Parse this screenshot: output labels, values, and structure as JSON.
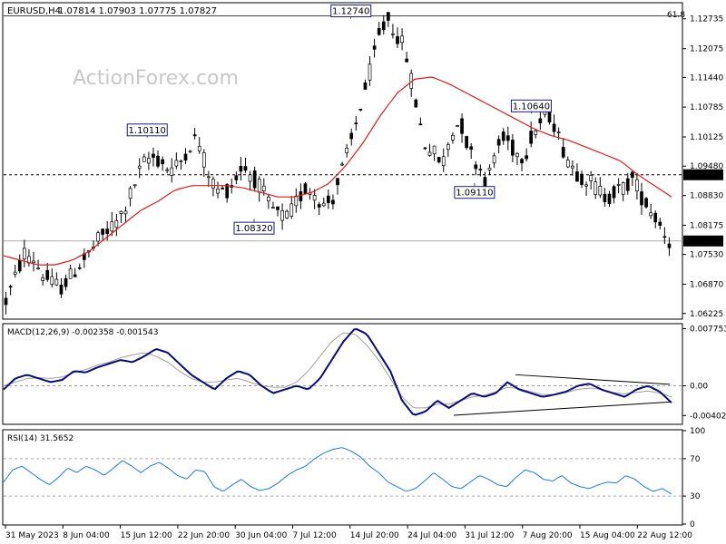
{
  "header": {
    "symbol_label": "EURUSD,H4",
    "ohlc": "1.07814 1.07903 1.07775 1.07827"
  },
  "watermark": "ActionForex.com",
  "fib_label": "61.8",
  "colors": {
    "candle": "#000000",
    "ma": "#e31a1c",
    "macd": "#0a0a78",
    "signal": "#a0a0a0",
    "rsi": "#1e78dc",
    "current_price_bg": "#000000",
    "marked_price_bg": "#000000"
  },
  "chart_data": [
    {
      "type": "candlestick",
      "title": "EURUSD,H4",
      "ohlc_last": "1.07814 1.07903 1.07775 1.07827",
      "ylim": [
        1.0612,
        1.1307
      ],
      "y_ticks": [
        "1.12735",
        "1.12075",
        "1.11440",
        "1.10785",
        "1.10125",
        "1.09480",
        "1.08830",
        "1.08175",
        "1.07530",
        "1.06870",
        "1.06225"
      ],
      "x_ticks": [
        "31 May 2023",
        "8 Jun 04:00",
        "15 Jun 12:00",
        "22 Jun 20:00",
        "30 Jun 04:00",
        "7 Jul 12:00",
        "14 Jul 20:00",
        "24 Jul 04:00",
        "31 Jul 12:00",
        "7 Aug 20:00",
        "15 Aug 04:00",
        "22 Aug 12:00"
      ],
      "close_path": [
        1.065,
        1.07,
        1.0755,
        1.0745,
        1.071,
        1.069,
        1.068,
        1.07,
        1.073,
        1.075,
        1.078,
        1.08,
        1.082,
        1.085,
        1.09,
        1.095,
        1.097,
        1.096,
        1.094,
        1.095,
        1.099,
        1.1011,
        1.095,
        1.09,
        1.089,
        1.091,
        1.095,
        1.093,
        1.09,
        1.086,
        1.084,
        1.0832,
        1.087,
        1.09,
        1.089,
        1.086,
        1.088,
        1.094,
        1.1,
        1.108,
        1.115,
        1.123,
        1.1274,
        1.124,
        1.12,
        1.11,
        1.1,
        1.098,
        1.095,
        1.102,
        1.105,
        1.098,
        1.095,
        1.0911,
        1.099,
        1.101,
        1.098,
        1.097,
        1.102,
        1.105,
        1.1064,
        1.1,
        1.096,
        1.093,
        1.092,
        1.09,
        1.088,
        1.089,
        1.09,
        1.092,
        1.088,
        1.085,
        1.082,
        1.0783
      ],
      "ma_path": [
        1.075,
        1.074,
        1.073,
        1.073,
        1.074,
        1.076,
        1.079,
        1.082,
        1.085,
        1.087,
        1.0895,
        1.0905,
        1.0905,
        1.0905,
        1.09,
        1.089,
        1.088,
        1.088,
        1.089,
        1.091,
        1.095,
        1.1,
        1.106,
        1.111,
        1.114,
        1.1145,
        1.113,
        1.111,
        1.109,
        1.107,
        1.105,
        1.103,
        1.1015,
        1.1005,
        1.099,
        1.0975,
        1.096,
        1.093,
        1.0905,
        1.088
      ],
      "current_price": "1.07827",
      "marked_price": "1.09290",
      "marked_level": 1.0929,
      "fib_level": 1.128,
      "annotations": [
        {
          "label": "1.12740",
          "value": 1.1274
        },
        {
          "label": "1.10110",
          "value": 1.1011
        },
        {
          "label": "1.10640",
          "value": 1.1064
        },
        {
          "label": "1.08320",
          "value": 1.0832
        },
        {
          "label": "1.09110",
          "value": 1.0911
        }
      ]
    },
    {
      "type": "line",
      "title": "MACD(12,26,9) -0.002358 -0.001543",
      "ylim": [
        -0.0051,
        0.0083
      ],
      "y_ticks": [
        "0.007753",
        "0.00",
        "-0.004027"
      ],
      "macd_path": [
        -0.0005,
        0.001,
        0.0015,
        0.001,
        0.0005,
        0.0008,
        0.002,
        0.0018,
        0.0025,
        0.003,
        0.0035,
        0.0032,
        0.004,
        0.005,
        0.0045,
        0.003,
        0.0015,
        0.0005,
        -0.0005,
        0.001,
        0.002,
        0.0015,
        0.0,
        -0.001,
        -0.0005,
        0.0,
        -0.0005,
        0.001,
        0.0035,
        0.006,
        0.0078,
        0.007,
        0.0045,
        0.002,
        -0.002,
        -0.004,
        -0.0035,
        -0.002,
        -0.003,
        -0.002,
        -0.001,
        -0.0015,
        -0.001,
        0.0005,
        -0.0005,
        -0.001,
        -0.0015,
        -0.0012,
        -0.0008,
        0.0,
        0.0003,
        -0.0005,
        -0.001,
        -0.0015,
        -0.0005,
        0.0,
        -0.0008,
        -0.0023
      ],
      "signal_path": [
        0.0,
        0.0005,
        0.001,
        0.0011,
        0.001,
        0.0012,
        0.0018,
        0.0022,
        0.0028,
        0.0032,
        0.0038,
        0.0042,
        0.0045,
        0.004,
        0.0032,
        0.002,
        0.001,
        0.0005,
        0.0005,
        0.0008,
        0.001,
        0.0005,
        0.0,
        -0.0002,
        -0.0002,
        0.0005,
        0.002,
        0.004,
        0.006,
        0.0072,
        0.007,
        0.0055,
        0.0035,
        0.001,
        -0.0015,
        -0.003,
        -0.003,
        -0.0025,
        -0.0025,
        -0.002,
        -0.0015,
        -0.0013,
        -0.0008,
        -0.0002,
        -0.0004,
        -0.0008,
        -0.0012,
        -0.0012,
        -0.0009,
        -0.0005,
        -0.0003,
        -0.0005,
        -0.0009,
        -0.0011,
        -0.0009,
        -0.0007,
        -0.001,
        -0.0015
      ]
    },
    {
      "type": "line",
      "title": "RSI(14) 31.5652",
      "ylim": [
        0,
        100
      ],
      "y_ticks": [
        "100",
        "70",
        "30",
        "0"
      ],
      "levels": [
        70,
        30
      ],
      "rsi_path": [
        45,
        58,
        62,
        55,
        48,
        42,
        50,
        60,
        55,
        62,
        58,
        52,
        60,
        68,
        62,
        55,
        62,
        66,
        60,
        52,
        48,
        58,
        56,
        40,
        35,
        42,
        48,
        40,
        36,
        38,
        44,
        52,
        58,
        62,
        70,
        76,
        80,
        82,
        78,
        72,
        62,
        55,
        45,
        40,
        35,
        38,
        46,
        55,
        48,
        40,
        38,
        45,
        52,
        48,
        42,
        40,
        50,
        58,
        55,
        48,
        46,
        52,
        44,
        40,
        38,
        42,
        45,
        44,
        52,
        48,
        40,
        35,
        38,
        32
      ]
    }
  ]
}
